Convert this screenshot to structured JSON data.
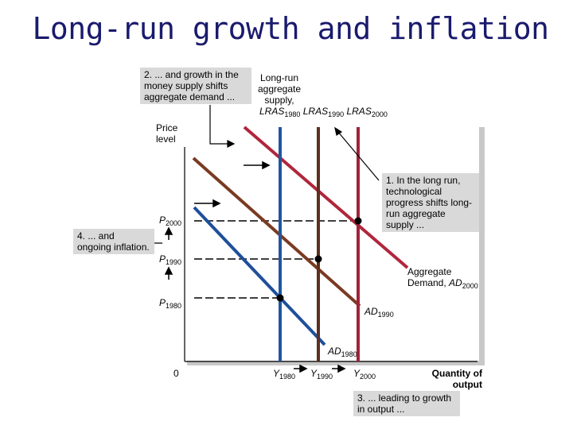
{
  "title": "Long-run growth and inflation",
  "annotations": {
    "note2": "2. ... and growth in the money supply shifts aggregate demand ...",
    "note1": "1. In the long run, technological progress shifts long-run aggregate supply ...",
    "note4": "4. ... and ongoing inflation.",
    "note3": "3. ... leading to growth in output ..."
  },
  "lras_label": {
    "prefix": "Long-run aggregate supply,",
    "items": [
      {
        "var": "LRAS",
        "sub": "1980"
      },
      {
        "var": "LRAS",
        "sub": "1990"
      },
      {
        "var": "LRAS",
        "sub": "2000"
      }
    ]
  },
  "axes": {
    "ylabel": "Price level",
    "xlabel": "Quantity of output",
    "origin": "0"
  },
  "price_levels": [
    {
      "var": "P",
      "sub": "2000"
    },
    {
      "var": "P",
      "sub": "1990"
    },
    {
      "var": "P",
      "sub": "1980"
    }
  ],
  "output_levels": [
    {
      "var": "Y",
      "sub": "1980"
    },
    {
      "var": "Y",
      "sub": "1990"
    },
    {
      "var": "Y",
      "sub": "2000"
    }
  ],
  "ad_labels": [
    {
      "text": "Aggregate Demand,",
      "var": "AD",
      "sub": "2000"
    },
    {
      "var": "AD",
      "sub": "1990"
    },
    {
      "var": "AD",
      "sub": "1980"
    }
  ],
  "colors": {
    "title": "#1a1a6e",
    "lras_1980": "#1f57a0",
    "lras_1990": "#5c2f1e",
    "lras_2000": "#a0233a",
    "ad_1980": "#1f4f9a",
    "ad_1990": "#7a3a22",
    "ad_2000": "#b0263c",
    "note_bg": "#d9d9d9"
  }
}
